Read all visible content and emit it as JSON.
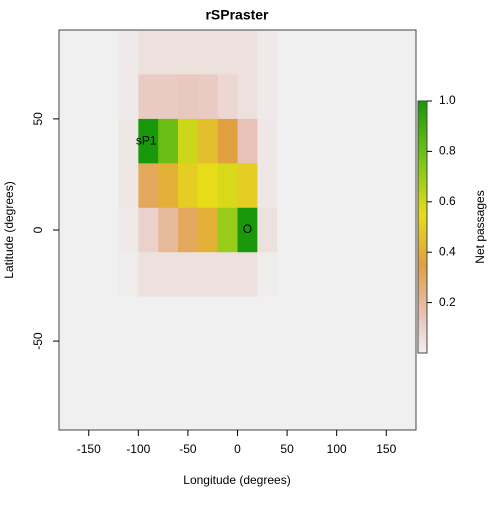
{
  "chart_data": {
    "type": "heatmap",
    "title": "rSPraster",
    "x_label": "Longitude (degrees)",
    "y_label": "Latitude (degrees)",
    "colorbar_label": "Net passages",
    "x": [
      -170,
      -150,
      -130,
      -110,
      -90,
      -70,
      -50,
      -30,
      -10,
      10,
      30,
      50,
      70,
      90,
      110,
      130,
      150,
      170
    ],
    "y": [
      80,
      60,
      40,
      20,
      0,
      -20,
      -40,
      -60,
      -80
    ],
    "z": [
      [
        0,
        0,
        0,
        0.02,
        0.05,
        0.05,
        0.05,
        0.05,
        0.05,
        0.05,
        0.02,
        0,
        0,
        0,
        0,
        0,
        0,
        0
      ],
      [
        0,
        0,
        0,
        0.02,
        0.12,
        0.12,
        0.13,
        0.12,
        0.08,
        0.05,
        0.02,
        0,
        0,
        0,
        0,
        0,
        0,
        0
      ],
      [
        0,
        0,
        0,
        0.03,
        1,
        0.8,
        0.6,
        0.45,
        0.35,
        0.15,
        0.03,
        0,
        0,
        0,
        0,
        0,
        0,
        0
      ],
      [
        0,
        0,
        0,
        0.03,
        0.3,
        0.4,
        0.5,
        0.55,
        0.58,
        0.5,
        0.03,
        0,
        0,
        0,
        0,
        0,
        0,
        0
      ],
      [
        0,
        0,
        0,
        0.02,
        0.1,
        0.2,
        0.3,
        0.4,
        0.7,
        1,
        0.05,
        0,
        0,
        0,
        0,
        0,
        0,
        0
      ],
      [
        0,
        0,
        0,
        0.01,
        0.05,
        0.05,
        0.05,
        0.05,
        0.05,
        0.05,
        0.01,
        0,
        0,
        0,
        0,
        0,
        0,
        0
      ],
      [
        0,
        0,
        0,
        0,
        0,
        0,
        0,
        0,
        0,
        0,
        0,
        0,
        0,
        0,
        0,
        0,
        0,
        0
      ],
      [
        0,
        0,
        0,
        0,
        0,
        0,
        0,
        0,
        0,
        0,
        0,
        0,
        0,
        0,
        0,
        0,
        0,
        0
      ],
      [
        0,
        0,
        0,
        0,
        0,
        0,
        0,
        0,
        0,
        0,
        0,
        0,
        0,
        0,
        0,
        0,
        0,
        0
      ]
    ],
    "xlim": [
      -180,
      180
    ],
    "ylim": [
      -90,
      90
    ],
    "xticks": [
      -150,
      -100,
      -50,
      0,
      50,
      100,
      150
    ],
    "yticks": [
      -50,
      0,
      50
    ],
    "clim": [
      0,
      1
    ],
    "cticks": [
      0.2,
      0.4,
      0.6,
      0.8,
      {
        "value": 1,
        "label": "1.0"
      }
    ],
    "colorscale": [
      [
        0,
        "#f0f0f0"
      ],
      [
        0.15,
        "#e8c2b8"
      ],
      [
        0.35,
        "#e0a040"
      ],
      [
        0.55,
        "#e6dc1a"
      ],
      [
        0.75,
        "#80c818"
      ],
      [
        1,
        "#18980a"
      ]
    ],
    "annotations": [
      {
        "text": "sP1",
        "x": -92,
        "y": 40
      },
      {
        "text": "O",
        "x": 10,
        "y": 0
      }
    ]
  }
}
